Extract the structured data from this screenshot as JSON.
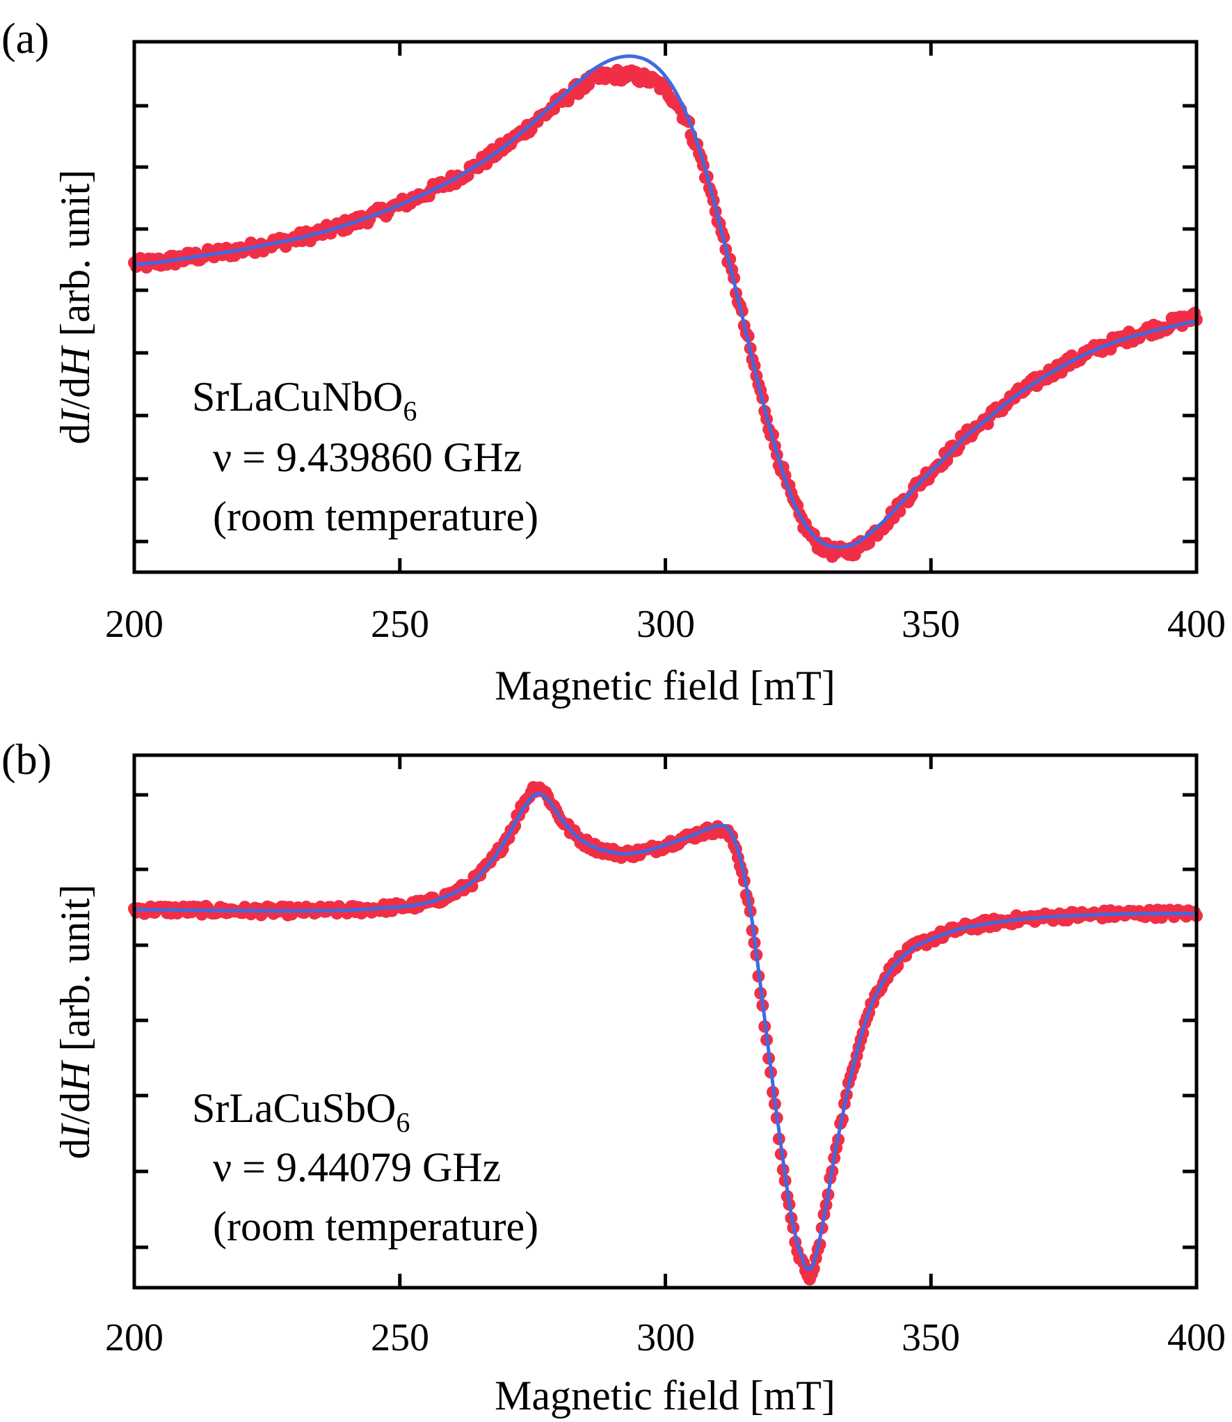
{
  "colors": {
    "data_points": "#F02F47",
    "fit_line": "#4169E1",
    "axes": "#000000"
  },
  "chart_data": [
    {
      "type": "scatter",
      "panel_label": "(a)",
      "xlabel": "Magnetic field [mT]",
      "ylabel_parts": {
        "d1": "d",
        "i": "I",
        "slash": "/d",
        "h": "H",
        "rest": " [arb. unit]"
      },
      "xlim": [
        200,
        400
      ],
      "ylim": [
        -1.0,
        1.0
      ],
      "xticks": [
        "200",
        "250",
        "300",
        "350",
        "400"
      ],
      "y_tick_labels": "none",
      "annotation": {
        "compound_main": "SrLaCuNbO",
        "compound_sub": "6",
        "frequency": "ν = 9.439860 GHz",
        "condition": "(room temperature)"
      },
      "series": [
        {
          "name": "data",
          "style": "markers",
          "noise": 0.022,
          "x": [
            200,
            205,
            210,
            215,
            220,
            225,
            230,
            235,
            240,
            245,
            250,
            255,
            260,
            265,
            270,
            275,
            280,
            285,
            288,
            291,
            294,
            297,
            300,
            303,
            306,
            309,
            312,
            315,
            318,
            321,
            324,
            327,
            330,
            333,
            336,
            339,
            342,
            345,
            348,
            351,
            354,
            357,
            360,
            365,
            370,
            375,
            380,
            385,
            390,
            395,
            400
          ],
          "y": [
            0.16,
            0.17,
            0.185,
            0.2,
            0.215,
            0.235,
            0.255,
            0.28,
            0.31,
            0.345,
            0.385,
            0.43,
            0.48,
            0.54,
            0.61,
            0.69,
            0.77,
            0.84,
            0.865,
            0.875,
            0.87,
            0.855,
            0.82,
            0.74,
            0.6,
            0.4,
            0.17,
            -0.08,
            -0.33,
            -0.55,
            -0.73,
            -0.85,
            -0.91,
            -0.925,
            -0.91,
            -0.86,
            -0.8,
            -0.73,
            -0.66,
            -0.6,
            -0.54,
            -0.48,
            -0.43,
            -0.35,
            -0.28,
            -0.22,
            -0.17,
            -0.13,
            -0.095,
            -0.065,
            -0.04
          ]
        },
        {
          "name": "fit",
          "style": "line",
          "x": [
            200,
            205,
            210,
            215,
            220,
            225,
            230,
            235,
            240,
            245,
            250,
            255,
            260,
            265,
            270,
            275,
            280,
            285,
            288,
            291,
            294,
            297,
            300,
            303,
            306,
            309,
            312,
            315,
            318,
            321,
            324,
            327,
            330,
            333,
            336,
            339,
            342,
            345,
            348,
            351,
            354,
            357,
            360,
            365,
            370,
            375,
            380,
            385,
            390,
            395,
            400
          ],
          "y": [
            0.16,
            0.17,
            0.185,
            0.2,
            0.215,
            0.235,
            0.255,
            0.28,
            0.31,
            0.345,
            0.385,
            0.43,
            0.48,
            0.54,
            0.61,
            0.695,
            0.785,
            0.87,
            0.915,
            0.94,
            0.945,
            0.925,
            0.87,
            0.77,
            0.62,
            0.41,
            0.17,
            -0.08,
            -0.33,
            -0.55,
            -0.73,
            -0.84,
            -0.895,
            -0.905,
            -0.89,
            -0.845,
            -0.79,
            -0.725,
            -0.66,
            -0.6,
            -0.54,
            -0.48,
            -0.43,
            -0.35,
            -0.28,
            -0.22,
            -0.17,
            -0.13,
            -0.1,
            -0.075,
            -0.055
          ]
        }
      ]
    },
    {
      "type": "scatter",
      "panel_label": "(b)",
      "xlabel": "Magnetic field [mT]",
      "ylabel_parts": {
        "d1": "d",
        "i": "I",
        "slash": "/d",
        "h": "H",
        "rest": " [arb. unit]"
      },
      "xlim": [
        200,
        400
      ],
      "ylim": [
        -1.0,
        1.0
      ],
      "xticks": [
        "200",
        "250",
        "300",
        "350",
        "400"
      ],
      "y_tick_labels": "none",
      "annotation": {
        "compound_main": "SrLaCuSbO",
        "compound_sub": "6",
        "frequency": "ν = 9.44079 GHz",
        "condition": "(room temperature)"
      },
      "series": [
        {
          "name": "data",
          "style": "markers",
          "noise": 0.016,
          "x": [
            200,
            210,
            220,
            230,
            240,
            250,
            255,
            260,
            264,
            268,
            271,
            274,
            276,
            278,
            280,
            283,
            286,
            289,
            292,
            295,
            298,
            301,
            304,
            307,
            310,
            312,
            314,
            316,
            318,
            320,
            322,
            324,
            326,
            327,
            328,
            330,
            332,
            335,
            338,
            341,
            344,
            347,
            350,
            355,
            360,
            365,
            370,
            380,
            390,
            400
          ],
          "y": [
            0.42,
            0.418,
            0.416,
            0.415,
            0.418,
            0.43,
            0.445,
            0.48,
            0.53,
            0.62,
            0.72,
            0.84,
            0.88,
            0.84,
            0.77,
            0.7,
            0.66,
            0.64,
            0.63,
            0.635,
            0.65,
            0.67,
            0.69,
            0.71,
            0.72,
            0.7,
            0.6,
            0.4,
            0.1,
            -0.22,
            -0.52,
            -0.78,
            -0.92,
            -0.96,
            -0.92,
            -0.72,
            -0.48,
            -0.2,
            0.02,
            0.15,
            0.23,
            0.28,
            0.31,
            0.345,
            0.365,
            0.38,
            0.39,
            0.4,
            0.405,
            0.405
          ]
        },
        {
          "name": "fit",
          "style": "line",
          "x": [
            200,
            210,
            220,
            230,
            240,
            250,
            255,
            260,
            264,
            268,
            271,
            274,
            276,
            278,
            280,
            283,
            286,
            289,
            292,
            295,
            298,
            301,
            304,
            307,
            310,
            312,
            314,
            316,
            318,
            320,
            322,
            324,
            326,
            327,
            328,
            330,
            332,
            335,
            338,
            341,
            344,
            347,
            350,
            355,
            360,
            365,
            370,
            380,
            390,
            400
          ],
          "y": [
            0.42,
            0.418,
            0.416,
            0.415,
            0.418,
            0.43,
            0.445,
            0.48,
            0.53,
            0.62,
            0.72,
            0.82,
            0.855,
            0.83,
            0.77,
            0.7,
            0.66,
            0.64,
            0.63,
            0.635,
            0.65,
            0.67,
            0.69,
            0.715,
            0.735,
            0.72,
            0.62,
            0.42,
            0.12,
            -0.2,
            -0.5,
            -0.76,
            -0.9,
            -0.93,
            -0.9,
            -0.72,
            -0.48,
            -0.2,
            0.02,
            0.15,
            0.23,
            0.28,
            0.31,
            0.345,
            0.365,
            0.38,
            0.39,
            0.4,
            0.405,
            0.405
          ]
        }
      ]
    }
  ]
}
